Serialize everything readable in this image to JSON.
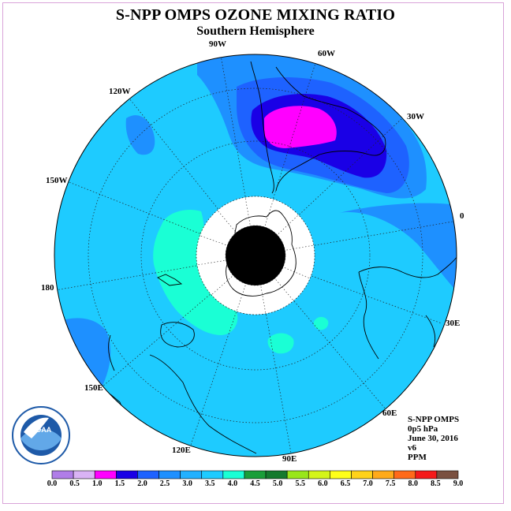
{
  "title": "S-NPP OMPS OZONE MIXING RATIO",
  "subtitle": "Southern Hemisphere",
  "info": {
    "instrument": "S-NPP OMPS",
    "level": "0p5 hPa",
    "date": "June 30, 2016",
    "version": "v6",
    "units": "PPM"
  },
  "longitude_labels": [
    "90W",
    "60W",
    "30W",
    "0",
    "30E",
    "60E",
    "90E",
    "120E",
    "150E",
    "180",
    "150W",
    "120W"
  ],
  "colorbar": {
    "ticks": [
      "0.0",
      "0.5",
      "1.0",
      "1.5",
      "2.0",
      "2.5",
      "3.0",
      "3.5",
      "4.0",
      "4.5",
      "5.0",
      "5.5",
      "6.0",
      "6.5",
      "7.0",
      "7.5",
      "8.0",
      "8.5",
      "9.0"
    ],
    "colors": [
      "#b07de8",
      "#d9b3f5",
      "#ff00ff",
      "#1a00e6",
      "#1e62ff",
      "#1e90ff",
      "#21b1ff",
      "#1ecbff",
      "#1affd5",
      "#1a9e3a",
      "#147a2e",
      "#99e61a",
      "#d4f51a",
      "#ffff1a",
      "#ffd21a",
      "#ffaa1a",
      "#ff6a1a",
      "#f51a1a",
      "#7a5040"
    ]
  },
  "field_colors": {
    "background": "#1ecbff",
    "level_2_5": "#1e90ff",
    "level_2_0": "#1e62ff",
    "level_1_5": "#1a00e6",
    "level_1_0": "#ff00ff",
    "level_3_5": "#1affd5"
  },
  "logo": {
    "text": "NOAA"
  }
}
